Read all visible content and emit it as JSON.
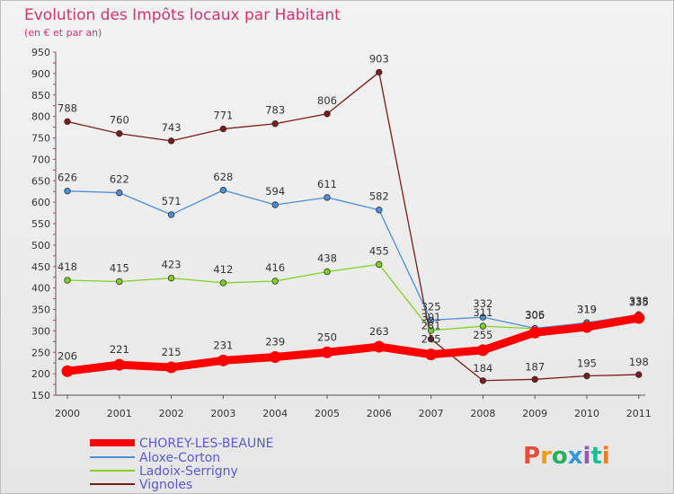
{
  "chart_data": {
    "type": "line",
    "title": "Evolution des Impôts locaux par Habitant",
    "subtitle": "(en € et par an)",
    "xlabel": "",
    "ylabel": "",
    "x": [
      "2000",
      "2001",
      "2002",
      "2003",
      "2004",
      "2005",
      "2006",
      "2007",
      "2008",
      "2009",
      "2010",
      "2011"
    ],
    "ylim": [
      150,
      950
    ],
    "yticks": [
      150,
      200,
      250,
      300,
      350,
      400,
      450,
      500,
      550,
      600,
      650,
      700,
      750,
      800,
      850,
      900,
      950
    ],
    "grid": false,
    "legend_position": "bottom-left",
    "series": [
      {
        "name": "CHOREY-LES-BEAUNE",
        "color": "#ff0000",
        "values": [
          206,
          221,
          215,
          231,
          239,
          250,
          263,
          245,
          255,
          296,
          309,
          330
        ],
        "labels": [
          "206",
          "221",
          "215",
          "231",
          "239",
          "250",
          "263",
          "245",
          "255",
          "",
          "",
          ""
        ]
      },
      {
        "name": "Aloxe-Corton",
        "color": "#4a90d9",
        "values": [
          626,
          622,
          571,
          628,
          594,
          611,
          582,
          325,
          332,
          306,
          319,
          338
        ],
        "labels": [
          "626",
          "622",
          "571",
          "628",
          "594",
          "611",
          "582",
          "325",
          "332",
          "306",
          "319",
          "338"
        ]
      },
      {
        "name": "Ladoix-Serrigny",
        "color": "#7ed321",
        "values": [
          418,
          415,
          423,
          412,
          416,
          438,
          455,
          301,
          311,
          305,
          319,
          335
        ],
        "labels": [
          "418",
          "415",
          "423",
          "412",
          "416",
          "438",
          "455",
          "301",
          "311",
          "305",
          "319",
          "335"
        ]
      },
      {
        "name": "Vignoles",
        "color": "#7b1a1a",
        "values": [
          788,
          760,
          743,
          771,
          783,
          806,
          903,
          281,
          184,
          187,
          195,
          198
        ],
        "labels": [
          "788",
          "760",
          "743",
          "771",
          "783",
          "806",
          "903",
          "281",
          "184",
          "187",
          "195",
          "198"
        ]
      }
    ]
  },
  "branding": {
    "logo_text": "Proxiti",
    "logo_colors": [
      "#e74c3c",
      "#f39c12",
      "#27ae60",
      "#3498db",
      "#9b59b6",
      "#1abc9c",
      "#e67e22"
    ]
  }
}
